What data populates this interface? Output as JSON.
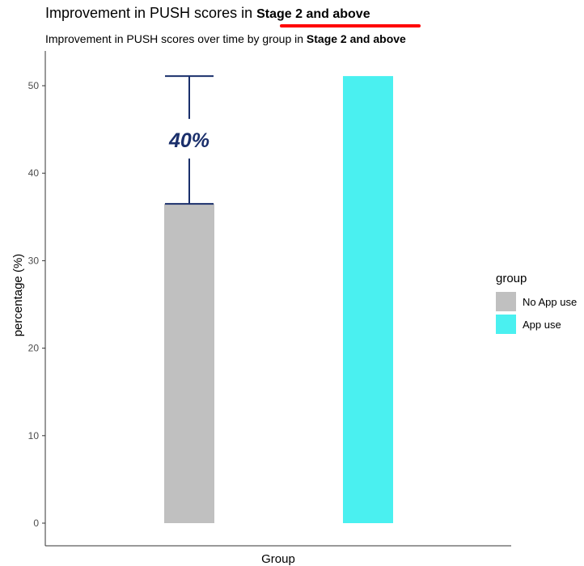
{
  "header": {
    "title_prefix": "Improvement in PUSH scores in",
    "title_highlight": "Stage 2 and above",
    "subtitle_prefix": "Improvement in PUSH scores over time by group in",
    "subtitle_highlight": "Stage 2 and above",
    "underline_color": "#ff0000"
  },
  "chart_data": {
    "type": "bar",
    "categories": [
      "No App use",
      "App use"
    ],
    "values": [
      36.5,
      51.1
    ],
    "colors": [
      "#c0c0c0",
      "#4af0f0"
    ],
    "xlabel": "Group",
    "ylabel": "percentage (%)",
    "ylim": [
      0,
      53
    ],
    "yticks": [
      0,
      10,
      20,
      30,
      40,
      50
    ],
    "grid": false,
    "legend": {
      "title": "group",
      "position": "right",
      "items": [
        "No App use",
        "App use"
      ]
    },
    "annotation": {
      "text": "40%",
      "from": 36.5,
      "to": 51.1,
      "color": "#1a2f6b"
    }
  }
}
